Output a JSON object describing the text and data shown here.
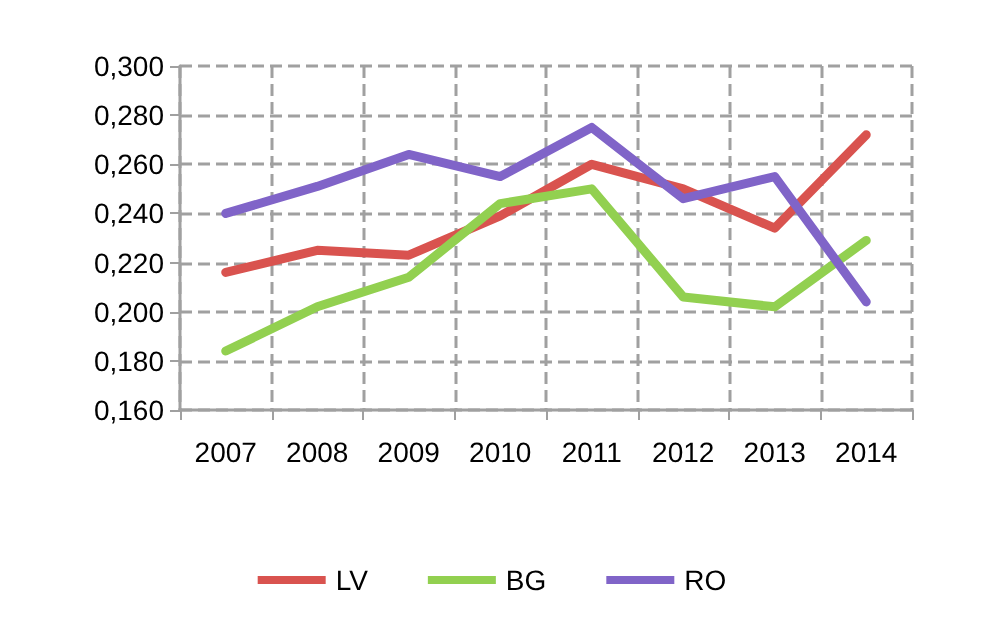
{
  "chart_data": {
    "type": "line",
    "categories": [
      "2007",
      "2008",
      "2009",
      "2010",
      "2011",
      "2012",
      "2013",
      "2014"
    ],
    "series": [
      {
        "name": "LV",
        "color": "#d9534f",
        "values": [
          0.216,
          0.225,
          0.223,
          0.239,
          0.26,
          0.25,
          0.234,
          0.272
        ]
      },
      {
        "name": "BG",
        "color": "#92d050",
        "values": [
          0.184,
          0.202,
          0.214,
          0.244,
          0.25,
          0.206,
          0.202,
          0.229
        ]
      },
      {
        "name": "RO",
        "color": "#8064c8",
        "values": [
          0.24,
          0.251,
          0.264,
          0.255,
          0.275,
          0.246,
          0.255,
          0.204
        ]
      }
    ],
    "ylim": [
      0.16,
      0.3
    ],
    "yticks": [
      {
        "value": 0.16,
        "label": "0,160"
      },
      {
        "value": 0.18,
        "label": "0,180"
      },
      {
        "value": 0.2,
        "label": "0,200"
      },
      {
        "value": 0.22,
        "label": "0,220"
      },
      {
        "value": 0.24,
        "label": "0,240"
      },
      {
        "value": 0.26,
        "label": "0,260"
      },
      {
        "value": 0.28,
        "label": "0,280"
      },
      {
        "value": 0.3,
        "label": "0,300"
      }
    ],
    "grid": true,
    "legend": "bottom",
    "marker": "none",
    "line_style": "solid"
  }
}
